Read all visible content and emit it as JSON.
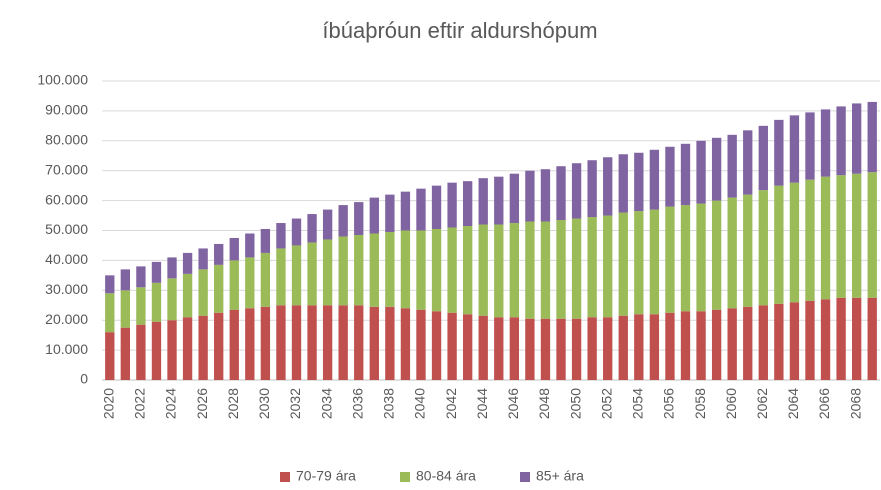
{
  "chart_data": {
    "type": "stacked_bar",
    "title": "íbúaþróun eftir aldurshópum",
    "categories": [
      "2020",
      null,
      "2022",
      null,
      "2024",
      null,
      "2026",
      null,
      "2028",
      null,
      "2030",
      null,
      "2032",
      null,
      "2034",
      null,
      "2036",
      null,
      "2038",
      null,
      "2040",
      null,
      "2042",
      null,
      "2044",
      null,
      "2046",
      null,
      "2048",
      null,
      "2050",
      null,
      "2052",
      null,
      "2054",
      null,
      "2056",
      null,
      "2058",
      null,
      "2060",
      null,
      "2062",
      null,
      "2064",
      null,
      "2066",
      null,
      "2068",
      null
    ],
    "series": [
      {
        "name": "70-79 ára",
        "color": "#c0504d",
        "values": [
          16000,
          17500,
          18500,
          19500,
          20000,
          21000,
          21500,
          22500,
          23500,
          24000,
          24500,
          25000,
          25000,
          25000,
          25000,
          25000,
          25000,
          24500,
          24500,
          24000,
          23500,
          23000,
          22500,
          22000,
          21500,
          21000,
          21000,
          20500,
          20500,
          20500,
          20500,
          21000,
          21000,
          21500,
          22000,
          22000,
          22500,
          23000,
          23000,
          23500,
          24000,
          24500,
          25000,
          25500,
          26000,
          26500,
          27000,
          27500,
          27500,
          27500
        ]
      },
      {
        "name": "80-84 ára",
        "color": "#9bbb59",
        "values": [
          13000,
          12500,
          12500,
          13000,
          14000,
          14500,
          15500,
          16000,
          16500,
          17000,
          18000,
          19000,
          20000,
          21000,
          22000,
          23000,
          23500,
          24500,
          25000,
          26000,
          26500,
          27500,
          28500,
          29500,
          30500,
          31000,
          31500,
          32500,
          32500,
          33000,
          33500,
          33500,
          34000,
          34500,
          34500,
          35000,
          35500,
          35500,
          36000,
          36500,
          37000,
          37500,
          38500,
          39500,
          40000,
          40500,
          41000,
          41000,
          41500,
          42000
        ]
      },
      {
        "name": "85+ ára",
        "color": "#8064a2",
        "values": [
          6000,
          7000,
          7000,
          7000,
          7000,
          7000,
          7000,
          7000,
          7500,
          8000,
          8000,
          8500,
          9000,
          9500,
          10000,
          10500,
          11000,
          12000,
          12500,
          13000,
          14000,
          14500,
          15000,
          15000,
          15500,
          16000,
          16500,
          17000,
          17500,
          18000,
          18500,
          19000,
          19500,
          19500,
          19500,
          20000,
          20000,
          20500,
          21000,
          21000,
          21000,
          21500,
          21500,
          22000,
          22500,
          22500,
          22500,
          23000,
          23500,
          23500
        ]
      }
    ],
    "ylim": [
      0,
      100000
    ],
    "yticks": [
      0,
      {
        "value": 10000,
        "label": "10.000"
      },
      {
        "value": 20000,
        "label": "20.000"
      },
      {
        "value": 30000,
        "label": "30.000"
      },
      {
        "value": 40000,
        "label": "40.000"
      },
      {
        "value": 50000,
        "label": "50.000"
      },
      {
        "value": 60000,
        "label": "60.000"
      },
      {
        "value": 70000,
        "label": "70.000"
      },
      {
        "value": 80000,
        "label": "80.000"
      },
      {
        "value": 90000,
        "label": "90.000"
      },
      {
        "value": 100000,
        "label": "100.000"
      }
    ],
    "grid": true,
    "legend": "bottom"
  }
}
